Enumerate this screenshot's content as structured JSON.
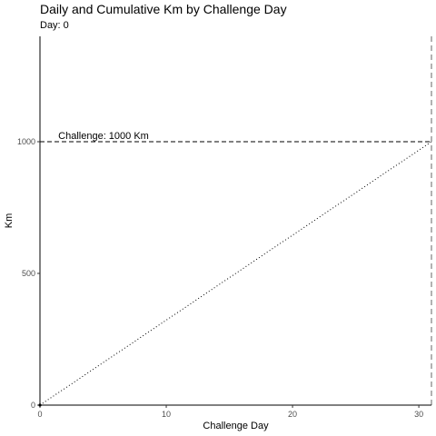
{
  "chart_data": {
    "type": "line",
    "title": "Daily and Cumulative Km by Challenge Day",
    "subtitle": "Day: 0",
    "xlabel": "Challenge Day",
    "ylabel": "Km",
    "xlim": [
      0,
      31
    ],
    "ylim": [
      0,
      1400
    ],
    "x_ticks": [
      0,
      10,
      20,
      30
    ],
    "y_ticks": [
      0,
      500,
      1000
    ],
    "grid": false,
    "series": [
      {
        "style": "dotted",
        "x": [
          0,
          31
        ],
        "values": [
          0,
          1000
        ]
      }
    ],
    "reference_lines": [
      {
        "orientation": "horizontal",
        "value": 1000,
        "style": "dashed",
        "label": "Challenge: 1000 Km"
      },
      {
        "orientation": "vertical",
        "value": 31,
        "style": "dashed"
      }
    ],
    "points": [
      {
        "x": 0,
        "y": 0
      }
    ]
  }
}
